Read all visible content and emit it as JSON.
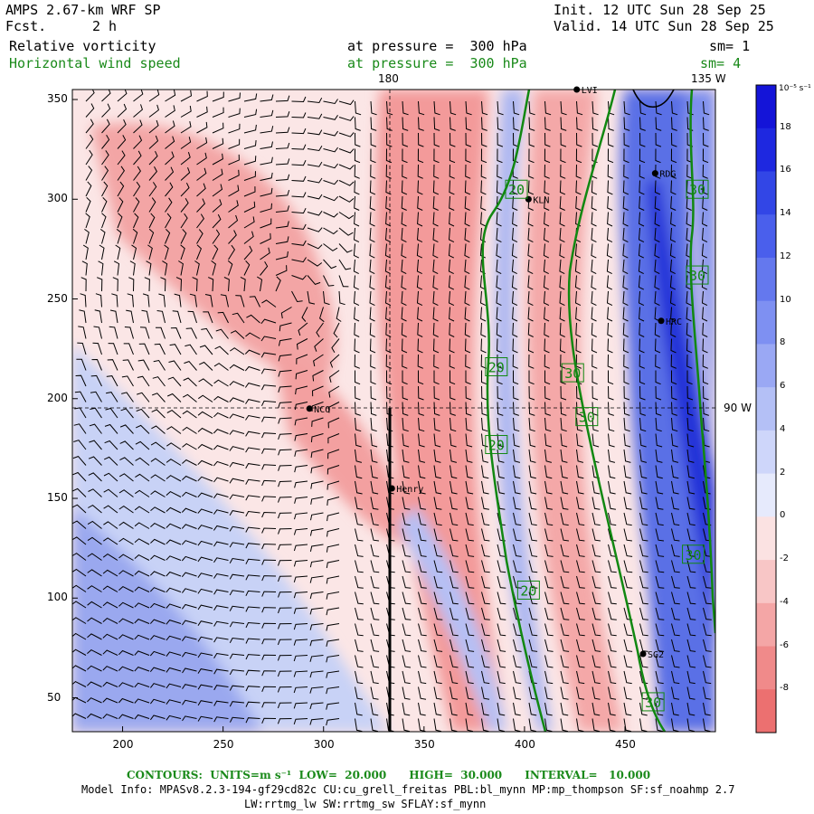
{
  "header": {
    "model": "AMPS 2.67-km WRF SP",
    "fcst_label": "Fcst.",
    "fcst_value": "2 h",
    "init": "Init. 12 UTC Sun 28 Sep 25",
    "valid": "Valid. 14 UTC Sun 28 Sep 25",
    "field1_name": "Relative vorticity",
    "field1_level": "at pressure =  300 hPa",
    "field1_sm": "sm= 1",
    "field2_name": "Horizontal wind speed",
    "field2_level": "at pressure =  300 hPa",
    "field2_sm": "sm= 4"
  },
  "map": {
    "meridian_top_label": "180",
    "meridian_right_top_label": "135 W",
    "parallel_right_label": "90 W",
    "x_ticks": [
      "200",
      "250",
      "300",
      "350",
      "400",
      "450"
    ],
    "y_ticks": [
      "350",
      "300",
      "250",
      "200",
      "150",
      "100",
      "50"
    ],
    "x_range": [
      175,
      495
    ],
    "y_range": [
      33,
      355
    ],
    "stations": [
      {
        "name": "LVI",
        "x": 426,
        "y": 355
      },
      {
        "name": "RDG",
        "x": 465,
        "y": 313
      },
      {
        "name": "KLN",
        "x": 402,
        "y": 300
      },
      {
        "name": "HRC",
        "x": 468,
        "y": 239
      },
      {
        "name": "NCO",
        "x": 293,
        "y": 195
      },
      {
        "name": "Henry",
        "x": 334,
        "y": 155
      },
      {
        "name": "SG2",
        "x": 459,
        "y": 72
      }
    ],
    "contour_labels": [
      {
        "text": "20",
        "x": 396,
        "y": 305
      },
      {
        "text": "30",
        "x": 486,
        "y": 305
      },
      {
        "text": "30",
        "x": 486,
        "y": 262
      },
      {
        "text": "20",
        "x": 386,
        "y": 216
      },
      {
        "text": "30",
        "x": 424,
        "y": 213
      },
      {
        "text": "30",
        "x": 431,
        "y": 191
      },
      {
        "text": "20",
        "x": 386,
        "y": 177
      },
      {
        "text": "30",
        "x": 484,
        "y": 122
      },
      {
        "text": "20",
        "x": 402,
        "y": 104
      },
      {
        "text": "30",
        "x": 464,
        "y": 48
      }
    ]
  },
  "colorbar": {
    "unit": "10⁻⁵ s⁻¹",
    "labels": [
      "18",
      "16",
      "14",
      "12",
      "10",
      "8",
      "6",
      "4",
      "2",
      "0",
      "-2",
      "-4",
      "-6",
      "-8"
    ],
    "colors": [
      "#1414d8",
      "#1e28e0",
      "#3246e6",
      "#4a5fec",
      "#6478ee",
      "#7e90f2",
      "#9aa8f4",
      "#b4c0f6",
      "#ced6fa",
      "#e6eafc",
      "#fbe2e2",
      "#f8c6c6",
      "#f4a6a6",
      "#f08a8a",
      "#ec7070"
    ]
  },
  "footer": {
    "contours": "CONTOURS:  UNITS=m s⁻¹  LOW=  20.000      HIGH=  30.000      INTERVAL=   10.000",
    "model_info": "Model Info: MPASv8.2.3-194-gf29cd82c CU:cu_grell_freitas PBL:bl_mynn MP:mp_thompson SF:sf_noahmp 2.7",
    "physics": "LW:rrtmg_lw SW:rrtmg_sw SFLAY:sf_mynn"
  }
}
